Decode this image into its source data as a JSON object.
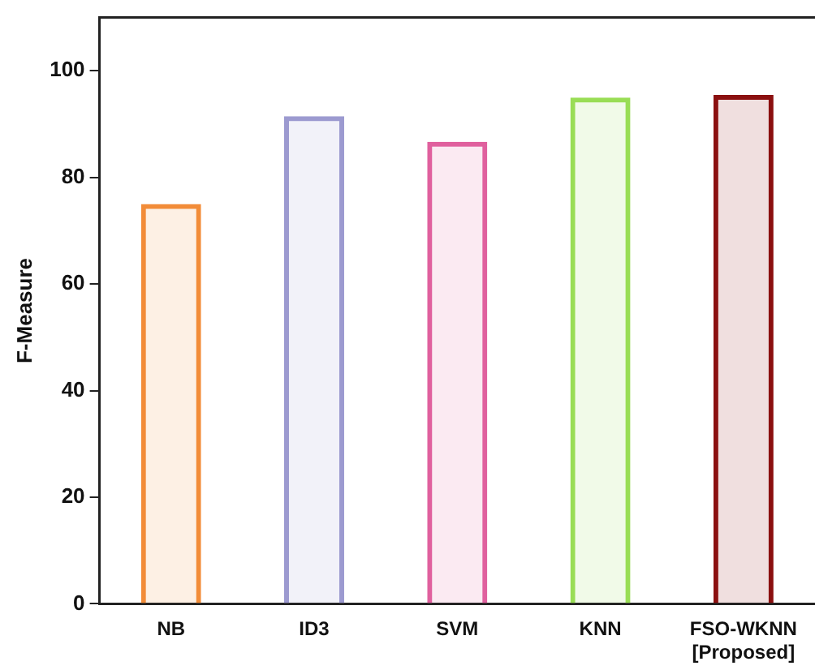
{
  "chart_data": {
    "type": "bar",
    "ylabel": "F-Measure",
    "categories": [
      "NB",
      "ID3",
      "SVM",
      "KNN",
      "FSO-WKNN\n[Proposed]"
    ],
    "values": [
      75,
      91.5,
      86.7,
      95,
      95.5
    ],
    "colors": [
      "#f28c38",
      "#9c9ad0",
      "#e0609e",
      "#99dd55",
      "#8b1010"
    ],
    "ylim": [
      0,
      110
    ],
    "yticks": [
      0,
      20,
      40,
      60,
      80,
      100
    ],
    "grid": false,
    "legend": false
  }
}
